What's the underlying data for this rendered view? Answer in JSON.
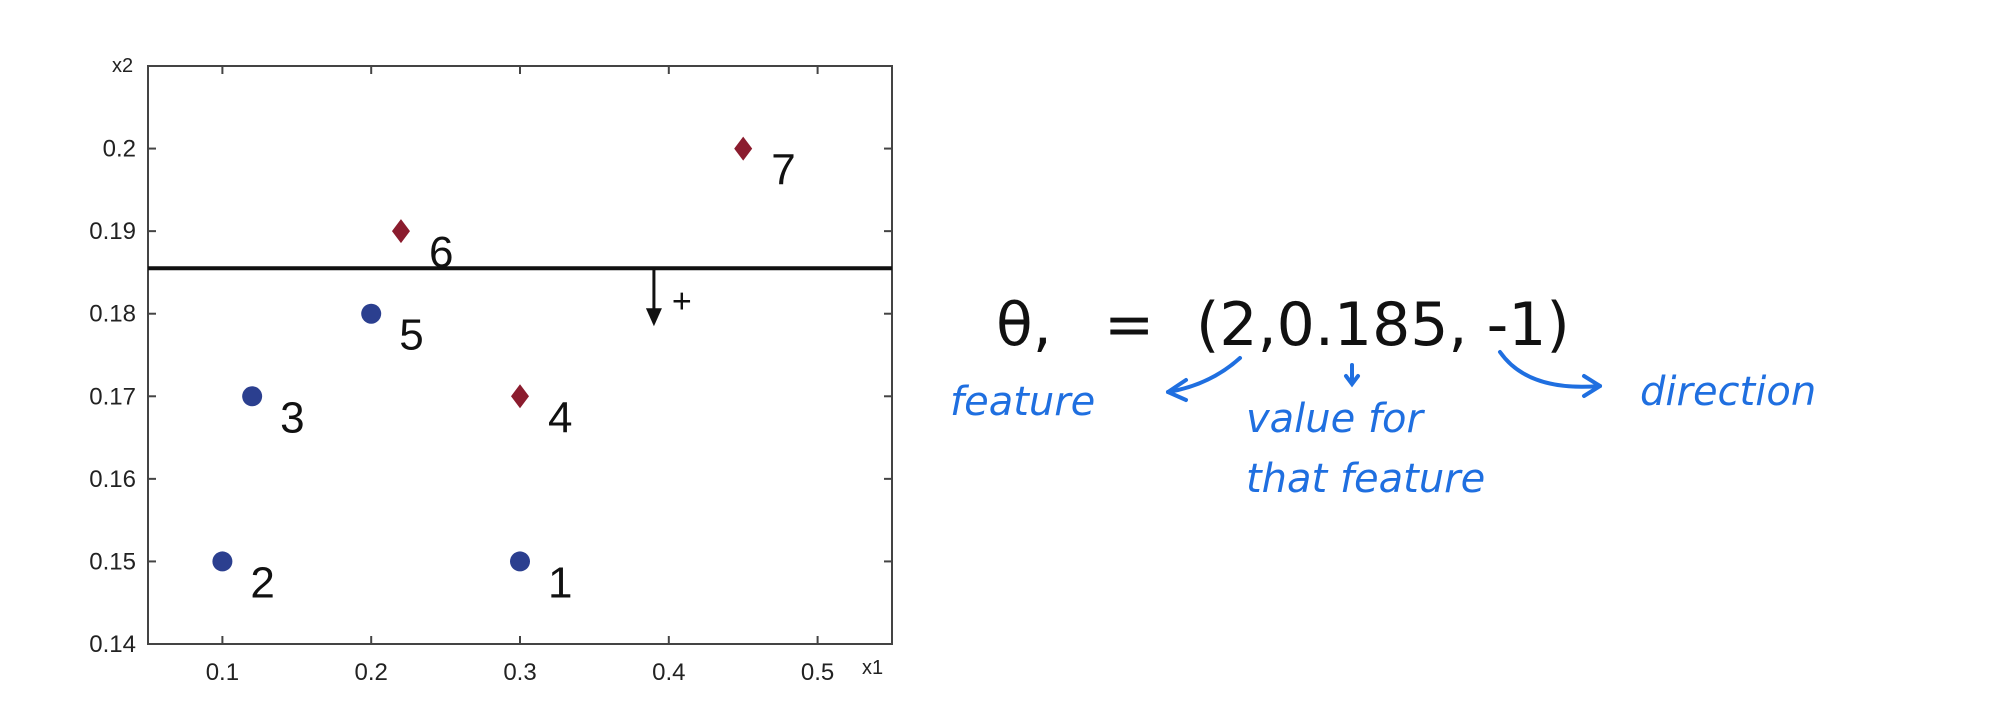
{
  "chart_data": {
    "type": "scatter",
    "title": "",
    "xlabel": "x1",
    "ylabel": "x2",
    "xlim": [
      0.05,
      0.55
    ],
    "ylim": [
      0.14,
      0.21
    ],
    "x_ticks": [
      0.1,
      0.2,
      0.3,
      0.4,
      0.5
    ],
    "x_tick_labels": [
      "0.1",
      "0.2",
      "0.3",
      "0.4",
      "0.5"
    ],
    "y_ticks": [
      0.14,
      0.15,
      0.16,
      0.17,
      0.18,
      0.19,
      0.2
    ],
    "y_tick_labels": [
      "0.14",
      "0.15",
      "0.16",
      "0.17",
      "0.18",
      "0.19",
      "0.2"
    ],
    "grid": false,
    "series": [
      {
        "name": "blue circles",
        "marker": "circle",
        "color": "#2b3f8f",
        "points": [
          {
            "label": "1",
            "x": 0.3,
            "y": 0.15
          },
          {
            "label": "2",
            "x": 0.1,
            "y": 0.15
          },
          {
            "label": "3",
            "x": 0.12,
            "y": 0.17
          },
          {
            "label": "5",
            "x": 0.2,
            "y": 0.18
          }
        ]
      },
      {
        "name": "red diamonds",
        "marker": "diamond",
        "color": "#8b1c2e",
        "points": [
          {
            "label": "4",
            "x": 0.3,
            "y": 0.17
          },
          {
            "label": "6",
            "x": 0.22,
            "y": 0.19
          },
          {
            "label": "7",
            "x": 0.45,
            "y": 0.2
          }
        ]
      }
    ],
    "decision_boundary": {
      "axis": "x2",
      "threshold": 0.1855,
      "arrow_x": 0.39,
      "direction_label": "+"
    }
  },
  "annotation": {
    "theta_label": "θ,",
    "equals": "=",
    "tuple": "(2,0.185, -1)",
    "feature_label": "feature",
    "value_label_line1": "value for",
    "value_label_line2": "that feature",
    "direction_label": "direction",
    "ink_color": "#1f6fe0"
  }
}
